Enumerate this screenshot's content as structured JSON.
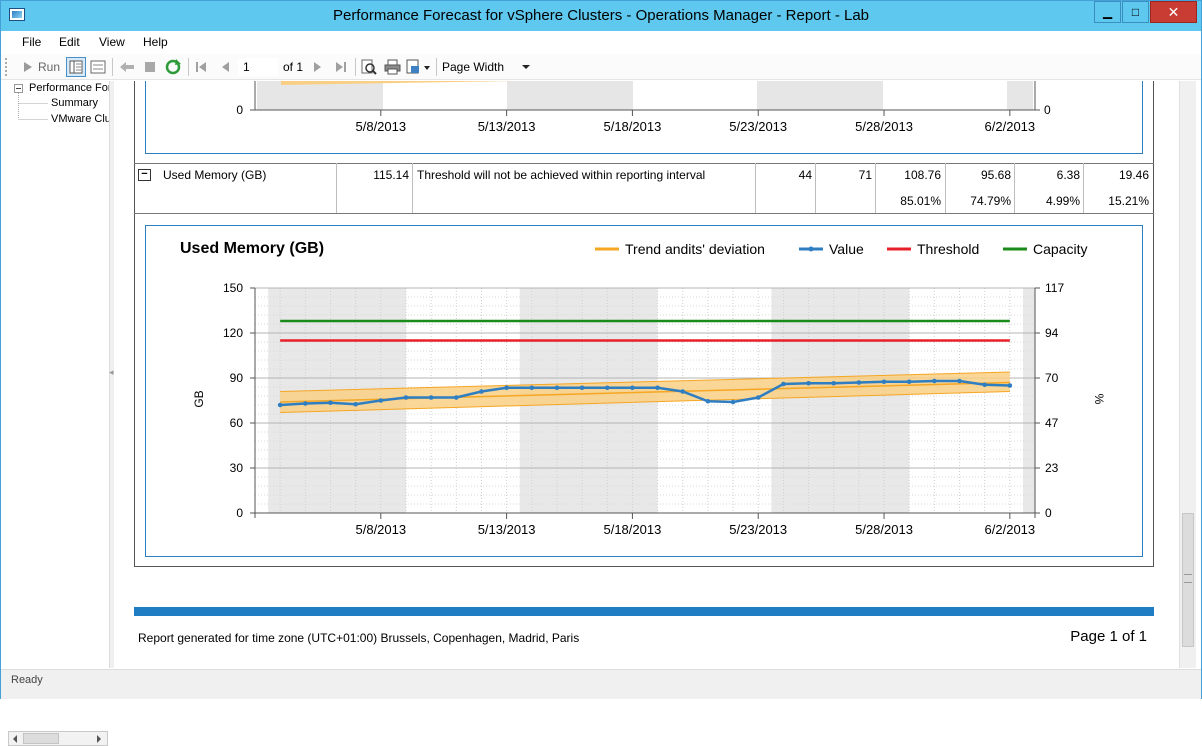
{
  "window": {
    "title": "Performance Forecast for vSphere Clusters - Operations Manager - Report - Lab",
    "minimize": "▁",
    "maximize": "□",
    "close": "✕"
  },
  "menu": [
    "File",
    "Edit",
    "View",
    "Help"
  ],
  "toolbar": {
    "run_label": "Run",
    "page_value": "1",
    "page_of": "of 1",
    "zoom_value": "Page Width",
    "icons": [
      "run-icon",
      "document-map-icon",
      "parameters-icon",
      "back-icon",
      "stop-icon",
      "refresh-icon",
      "first-page-icon",
      "prev-page-icon",
      "next-page-icon",
      "last-page-icon",
      "find-icon",
      "print-icon",
      "export-icon"
    ]
  },
  "tree": {
    "root": "Performance Forecast",
    "children": [
      "Summary",
      "VMware Clusters"
    ]
  },
  "status_text": "Ready",
  "top_chart": {
    "x_ticks": [
      "5/8/2013",
      "5/13/2013",
      "5/18/2013",
      "5/23/2013",
      "5/28/2013",
      "6/2/2013"
    ],
    "y_left_zero": "0",
    "y_right_zero": "0"
  },
  "row": {
    "toggle": "−",
    "name": "Used Memory (GB)",
    "current": "115.14",
    "status": "Threshold will not be achieved within reporting interval",
    "col4": "44",
    "col5": "71",
    "col6_abs": "108.76",
    "col6_pct": "85.01%",
    "col7_abs": "95.68",
    "col7_pct": "74.79%",
    "col8_abs": "6.38",
    "col8_pct": "4.99%",
    "col9_abs": "19.46",
    "col9_pct": "15.21%"
  },
  "chart_data": {
    "type": "line",
    "title": "Used Memory (GB)",
    "ylabel": "GB",
    "y2label": "%",
    "ylim": [
      0,
      150
    ],
    "y_ticks": [
      0,
      30,
      60,
      90,
      120,
      150
    ],
    "y2_ticks": [
      "0",
      "23",
      "47",
      "70",
      "94",
      "117"
    ],
    "x_ticks": [
      "5/8/2013",
      "5/13/2013",
      "5/18/2013",
      "5/23/2013",
      "5/28/2013",
      "6/2/2013"
    ],
    "x_range": [
      "5/3/2013",
      "6/3/2013"
    ],
    "grid": true,
    "legend_position": "top-right",
    "legend": [
      {
        "name": "Trend andits' deviation",
        "color": "#f5a623"
      },
      {
        "name": "Value",
        "color": "#2f7ec2"
      },
      {
        "name": "Threshold",
        "color": "#e8202a"
      },
      {
        "name": "Capacity",
        "color": "#1a8a1a"
      }
    ],
    "series": [
      {
        "name": "Value",
        "x": [
          "5/4/2013",
          "5/5/2013",
          "5/6/2013",
          "5/7/2013",
          "5/8/2013",
          "5/9/2013",
          "5/10/2013",
          "5/11/2013",
          "5/12/2013",
          "5/13/2013",
          "5/14/2013",
          "5/15/2013",
          "5/16/2013",
          "5/17/2013",
          "5/18/2013",
          "5/19/2013",
          "5/20/2013",
          "5/21/2013",
          "5/22/2013",
          "5/23/2013",
          "5/24/2013",
          "5/25/2013",
          "5/26/2013",
          "5/27/2013",
          "5/28/2013",
          "5/29/2013",
          "5/30/2013",
          "5/31/2013",
          "6/1/2013",
          "6/2/2013"
        ],
        "values": [
          72,
          73,
          73.5,
          72.5,
          75,
          77,
          77,
          77,
          81,
          83.5,
          83.5,
          83.5,
          83.5,
          83.5,
          83.5,
          83.5,
          81,
          74.5,
          74,
          77,
          86,
          86.5,
          86.5,
          87,
          87.5,
          87.5,
          88,
          88,
          85.5,
          85
        ]
      },
      {
        "name": "Threshold",
        "x": [
          "5/4/2013",
          "6/2/2013"
        ],
        "values": [
          115,
          115
        ]
      },
      {
        "name": "Capacity",
        "x": [
          "5/4/2013",
          "6/2/2013"
        ],
        "values": [
          128,
          128
        ]
      },
      {
        "name": "Trend andits' deviation",
        "x": [
          "5/4/2013",
          "6/2/2013"
        ],
        "values": [
          74,
          87
        ],
        "lower": [
          67,
          81
        ],
        "upper": [
          81,
          94
        ]
      }
    ]
  },
  "footer": {
    "timezone": "Report generated for time zone (UTC+01:00) Brussels, Copenhagen, Madrid, Paris",
    "page": "Page 1 of 1"
  }
}
